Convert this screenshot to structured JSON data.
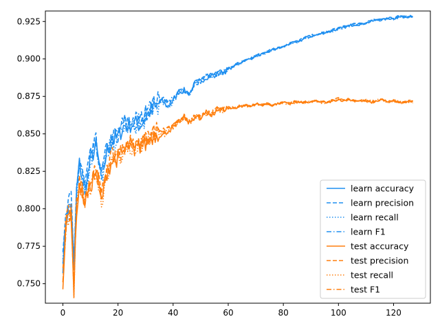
{
  "chart_data": {
    "type": "line",
    "title": "",
    "xlabel": "",
    "ylabel": "",
    "xlim": [
      -6.35,
      133.35
    ],
    "ylim": [
      0.737,
      0.932
    ],
    "xticks": [
      0,
      20,
      40,
      60,
      80,
      100,
      120
    ],
    "xtick_labels": [
      "0",
      "20",
      "40",
      "60",
      "80",
      "100",
      "120"
    ],
    "yticks": [
      0.75,
      0.775,
      0.8,
      0.825,
      0.85,
      0.875,
      0.9,
      0.925
    ],
    "ytick_labels": [
      "0.750",
      "0.775",
      "0.800",
      "0.825",
      "0.850",
      "0.875",
      "0.900",
      "0.925"
    ],
    "grid": false,
    "legend_position": "lower-right",
    "colors": {
      "learn": "#1f8ff0",
      "test": "#ff7f0e"
    },
    "anchors": {
      "learn": {
        "x": [
          0,
          1,
          2,
          3,
          4,
          5,
          6,
          8,
          10,
          12,
          14,
          16,
          18,
          20,
          22,
          24,
          26,
          28,
          30,
          32,
          34,
          36,
          38,
          40,
          42,
          44,
          46,
          48,
          50,
          52,
          54,
          56,
          58,
          60,
          62,
          64,
          66,
          68,
          70,
          72,
          74,
          76,
          78,
          80,
          82,
          84,
          86,
          88,
          90,
          92,
          94,
          96,
          98,
          100,
          102,
          104,
          106,
          108,
          110,
          112,
          114,
          116,
          118,
          120,
          122,
          124,
          126,
          127
        ],
        "y": [
          0.763,
          0.79,
          0.8,
          0.805,
          0.76,
          0.812,
          0.83,
          0.813,
          0.832,
          0.842,
          0.82,
          0.838,
          0.845,
          0.848,
          0.855,
          0.856,
          0.857,
          0.856,
          0.861,
          0.866,
          0.869,
          0.872,
          0.868,
          0.872,
          0.878,
          0.879,
          0.877,
          0.884,
          0.885,
          0.888,
          0.889,
          0.89,
          0.891,
          0.893,
          0.895,
          0.897,
          0.899,
          0.9,
          0.902,
          0.903,
          0.904,
          0.906,
          0.907,
          0.908,
          0.91,
          0.911,
          0.912,
          0.914,
          0.915,
          0.916,
          0.917,
          0.918,
          0.919,
          0.92,
          0.921,
          0.922,
          0.923,
          0.923,
          0.924,
          0.925,
          0.926,
          0.926,
          0.927,
          0.927,
          0.928,
          0.928,
          0.9285,
          0.9285
        ]
      },
      "test": {
        "x": [
          0,
          1,
          2,
          3,
          4,
          5,
          6,
          8,
          10,
          12,
          14,
          16,
          18,
          20,
          22,
          24,
          26,
          28,
          30,
          32,
          34,
          36,
          38,
          40,
          42,
          44,
          46,
          48,
          50,
          52,
          54,
          56,
          58,
          60,
          62,
          64,
          66,
          68,
          70,
          72,
          74,
          76,
          78,
          80,
          82,
          84,
          86,
          88,
          90,
          92,
          94,
          96,
          98,
          100,
          102,
          104,
          106,
          108,
          110,
          112,
          114,
          116,
          118,
          120,
          122,
          124,
          126,
          127
        ],
        "y": [
          0.752,
          0.785,
          0.795,
          0.798,
          0.745,
          0.8,
          0.815,
          0.805,
          0.815,
          0.826,
          0.805,
          0.825,
          0.832,
          0.834,
          0.838,
          0.842,
          0.838,
          0.842,
          0.843,
          0.848,
          0.85,
          0.849,
          0.852,
          0.854,
          0.858,
          0.861,
          0.857,
          0.862,
          0.86,
          0.864,
          0.863,
          0.866,
          0.866,
          0.867,
          0.867,
          0.868,
          0.869,
          0.868,
          0.87,
          0.869,
          0.87,
          0.869,
          0.87,
          0.871,
          0.87,
          0.871,
          0.871,
          0.871,
          0.871,
          0.872,
          0.871,
          0.871,
          0.872,
          0.873,
          0.872,
          0.873,
          0.872,
          0.872,
          0.872,
          0.871,
          0.872,
          0.873,
          0.871,
          0.872,
          0.871,
          0.871,
          0.8715,
          0.8715
        ]
      }
    },
    "series": [
      {
        "name": "learn accuracy",
        "group": "learn",
        "dash": "solid"
      },
      {
        "name": "learn precision",
        "group": "learn",
        "dash": "dashed"
      },
      {
        "name": "learn recall",
        "group": "learn",
        "dash": "dotted"
      },
      {
        "name": "learn F1",
        "group": "learn",
        "dash": "dashdot"
      },
      {
        "name": "test accuracy",
        "group": "test",
        "dash": "solid"
      },
      {
        "name": "test precision",
        "group": "test",
        "dash": "dashed"
      },
      {
        "name": "test recall",
        "group": "test",
        "dash": "dotted"
      },
      {
        "name": "test F1",
        "group": "test",
        "dash": "dashdot"
      }
    ]
  }
}
